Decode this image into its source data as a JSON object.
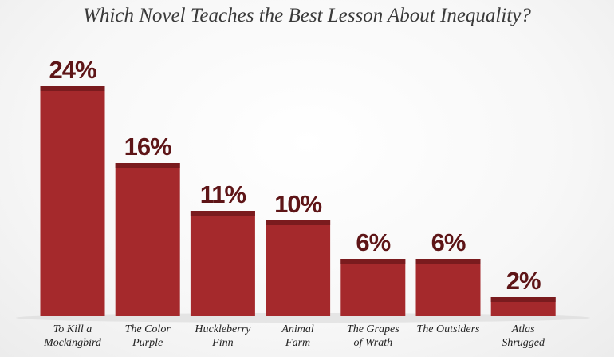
{
  "chart_data": {
    "type": "bar",
    "title": "Which Novel Teaches the Best Lesson About Inequality?",
    "categories": [
      "To Kill a\nMockingbird",
      "The Color\nPurple",
      "Huckleberry\nFinn",
      "Animal\nFarm",
      "The Grapes\nof Wrath",
      "The Outsiders",
      "Atlas\nShrugged"
    ],
    "values": [
      24,
      16,
      11,
      10,
      6,
      6,
      2
    ],
    "value_labels": [
      "24%",
      "16%",
      "11%",
      "10%",
      "6%",
      "6%",
      "2%"
    ],
    "color": "#a5292c"
  }
}
